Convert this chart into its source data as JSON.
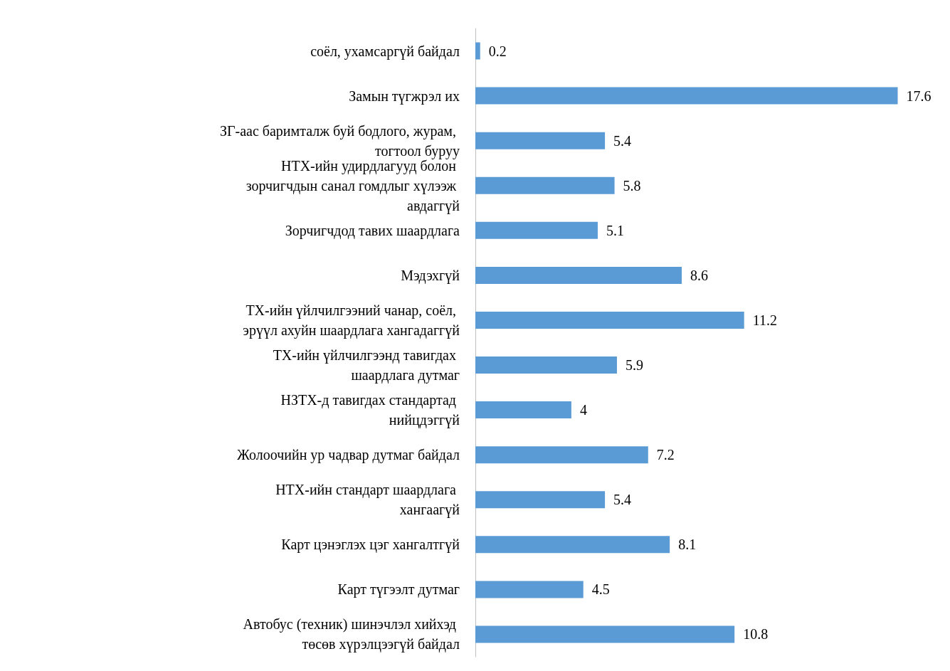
{
  "chart_data": {
    "type": "bar",
    "orientation": "horizontal",
    "data_labels": true,
    "color": "#5b9bd5",
    "categories": [
      "соёл, ухамсаргүй байдал",
      "Замын түгжрэл их",
      "ЗГ-аас баримталж буй бодлого, журам, тогтоол буруу",
      "НТХ-ийн удирдлагууд болон зорчигчдын санал гомдлыг хүлээж авдаггүй",
      "Зорчигчдод тавих шаардлага",
      "Мэдэхгүй",
      "ТХ-ийн үйлчилгээний чанар, соёл, эрүүл ахуйн шаардлага хангадаггүй",
      "ТХ-ийн үйлчилгээнд тавигдах шаардлага дутмаг",
      "НЗТХ-д тавигдах стандартад нийцдэггүй",
      "Жолоочийн ур чадвар дутмаг байдал",
      "НТХ-ийн стандарт шаардлага хангаагүй",
      "Карт цэнэглэх цэг хангалтгүй",
      "Карт түгээлт дутмаг",
      "Автобус (техник) шинэчлэл хийхэд төсөв хүрэлцээгүй байдал"
    ],
    "values": [
      0.2,
      17.6,
      5.4,
      5.8,
      5.1,
      8.6,
      11.2,
      5.9,
      4,
      7.2,
      5.4,
      8.1,
      4.5,
      10.8
    ]
  }
}
